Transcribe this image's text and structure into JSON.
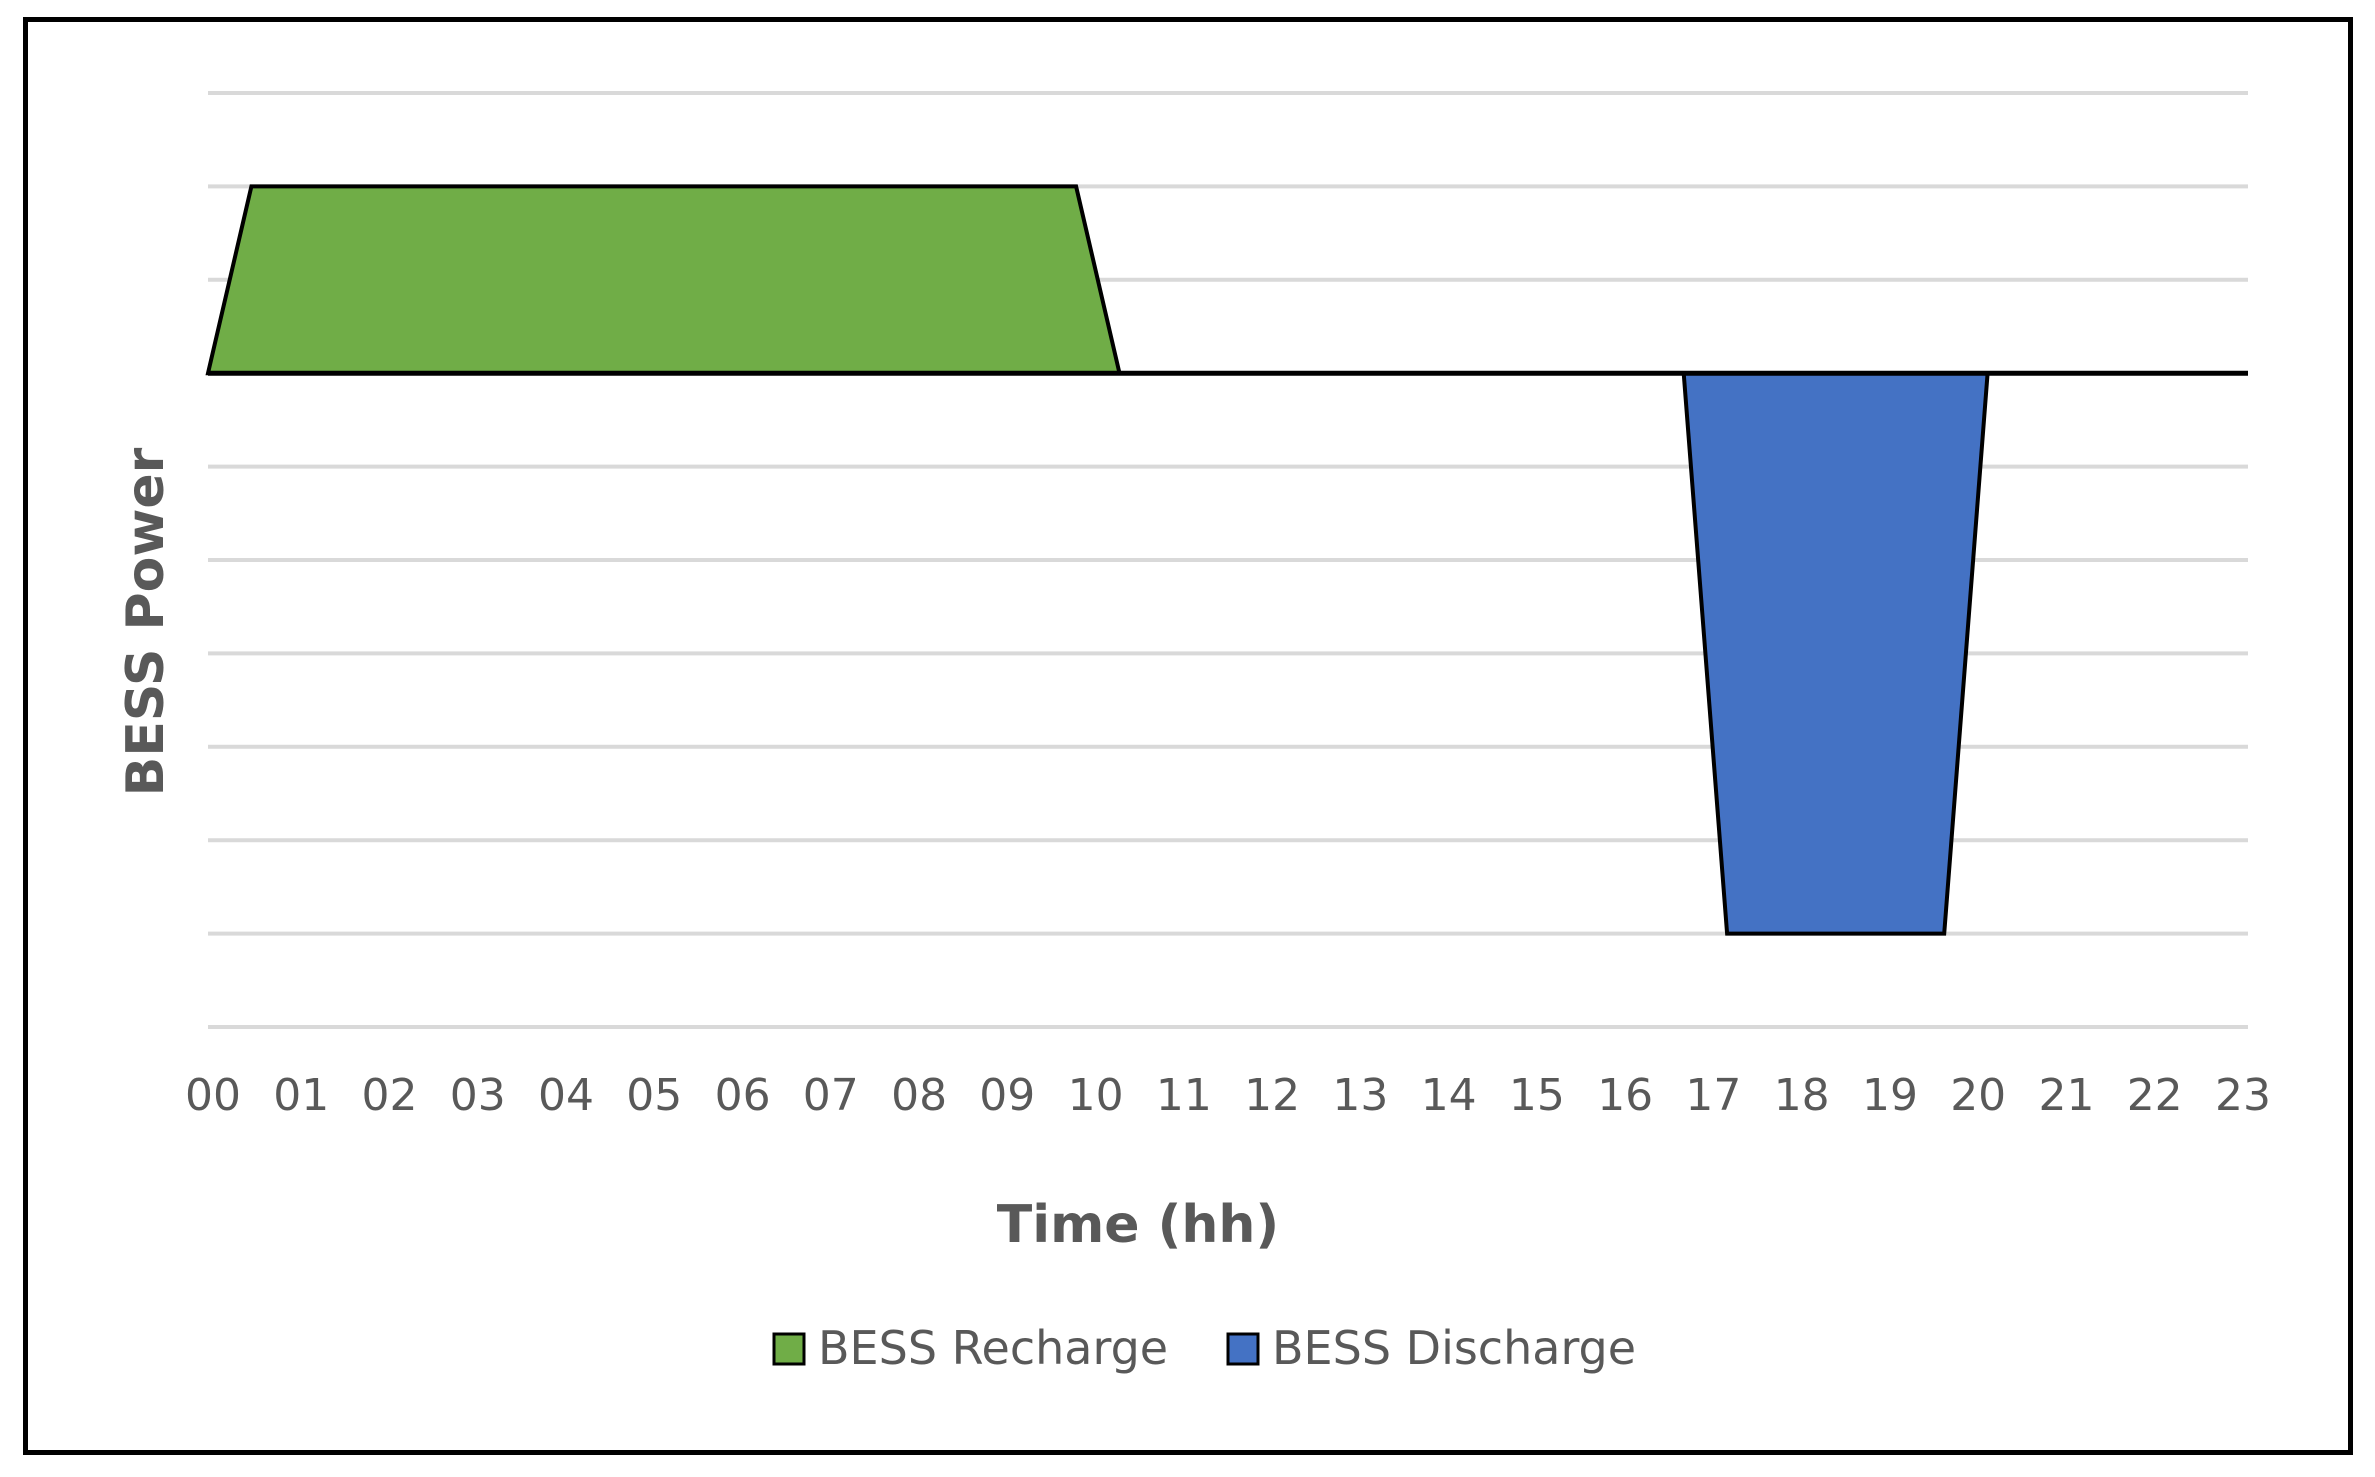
{
  "chart_data": {
    "type": "area",
    "title": "",
    "xlabel": "Time (hh)",
    "ylabel": "BESS Power",
    "categories": [
      "00",
      "01",
      "02",
      "03",
      "04",
      "05",
      "06",
      "07",
      "08",
      "09",
      "10",
      "11",
      "12",
      "13",
      "14",
      "15",
      "16",
      "17",
      "18",
      "19",
      "20",
      "21",
      "22",
      "23"
    ],
    "x_range": [
      0,
      23.5
    ],
    "ylim": [
      -4,
      3
    ],
    "y_tick_labels_shown": false,
    "grid": "horizontal",
    "legend_position": "bottom",
    "series": [
      {
        "name": "BESS Recharge",
        "color": "#70ad47",
        "points": [
          [
            0,
            0
          ],
          [
            0.5,
            2
          ],
          [
            10,
            2
          ],
          [
            10.5,
            0
          ]
        ]
      },
      {
        "name": "BESS Discharge",
        "color": "#4472c4",
        "points": [
          [
            17,
            0
          ],
          [
            17.5,
            -6
          ],
          [
            20,
            -6
          ],
          [
            20.5,
            0
          ]
        ]
      }
    ]
  }
}
